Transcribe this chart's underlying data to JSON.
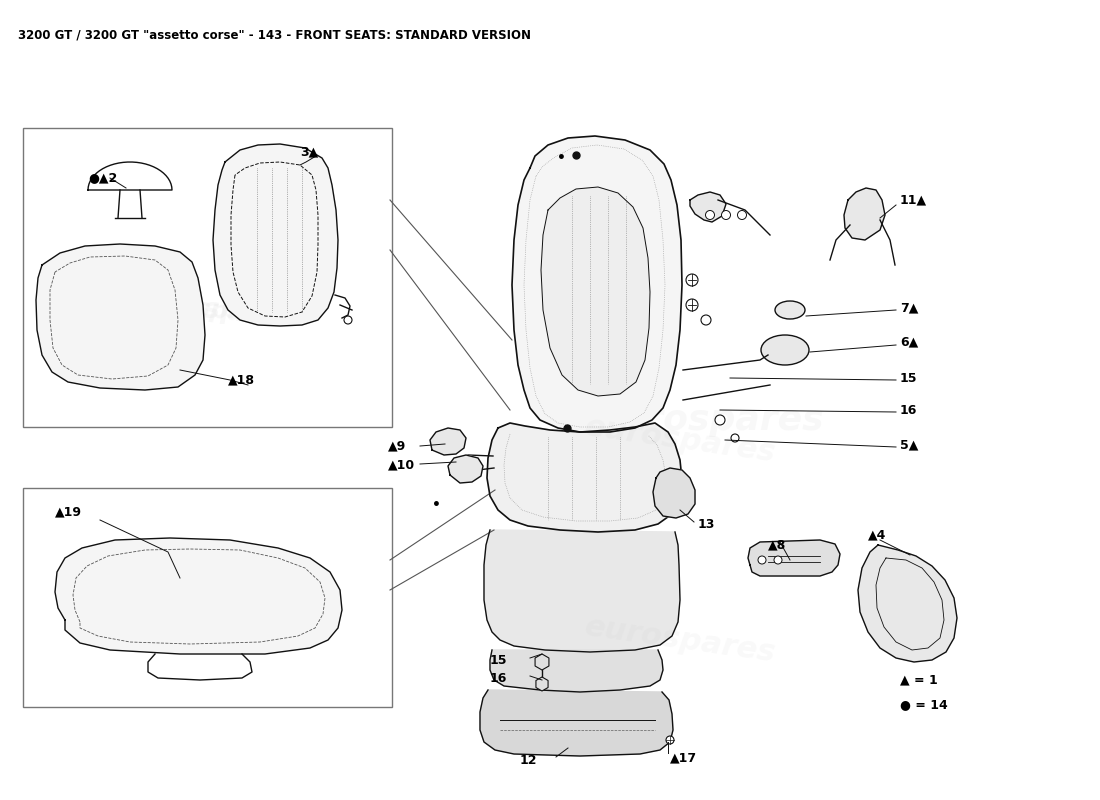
{
  "title": "3200 GT / 3200 GT \"assetto corse\" - 143 - FRONT SEATS: STANDARD VERSION",
  "title_fontsize": 8.5,
  "background_color": "#ffffff",
  "watermark_text": "eurospares",
  "watermark_color": "#cccccc",
  "legend_triangle": "▲ = 1",
  "legend_circle": "● = 14",
  "line_color": "#111111",
  "lw": 1.0
}
